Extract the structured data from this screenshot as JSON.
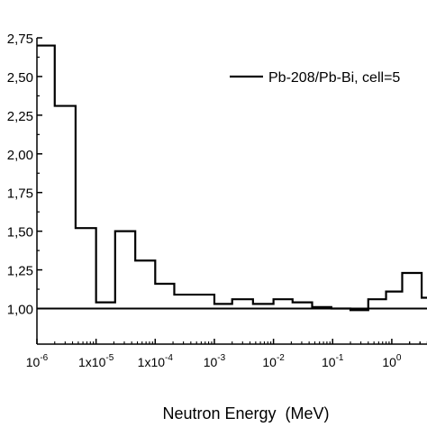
{
  "chart_data": {
    "type": "line",
    "step": true,
    "title": "",
    "xlabel": "Neutron Energy  (MeV)",
    "ylabel": "",
    "x_scale": "log",
    "xlim": [
      1e-06,
      6
    ],
    "ylim": [
      0.77,
      2.75
    ],
    "grid": false,
    "legend_position": "top-right",
    "reference_line": {
      "y": 1.0
    },
    "y_ticks": [
      {
        "value": 1.0,
        "label": "1,00"
      },
      {
        "value": 1.25,
        "label": "1,25"
      },
      {
        "value": 1.5,
        "label": "1,50"
      },
      {
        "value": 1.75,
        "label": "1,75"
      },
      {
        "value": 2.0,
        "label": "2,00"
      },
      {
        "value": 2.25,
        "label": "2,25"
      },
      {
        "value": 2.5,
        "label": "2,50"
      },
      {
        "value": 2.75,
        "label": "2,75"
      }
    ],
    "x_ticks": [
      {
        "value": 1e-06,
        "base": "10",
        "exp": "-6"
      },
      {
        "value": 1e-05,
        "base": "1x10",
        "exp": "-5"
      },
      {
        "value": 0.0001,
        "base": "1x10",
        "exp": "-4"
      },
      {
        "value": 0.001,
        "base": "10",
        "exp": "-3"
      },
      {
        "value": 0.01,
        "base": "10",
        "exp": "-2"
      },
      {
        "value": 0.1,
        "base": "10",
        "exp": "-1"
      },
      {
        "value": 1,
        "base": "10",
        "exp": "0"
      }
    ],
    "series": [
      {
        "name": "Pb-208/Pb-Bi, cell=5",
        "color": "#000000",
        "bins": [
          {
            "x0": 1e-06,
            "x1": 2e-06,
            "y": 2.7
          },
          {
            "x0": 2e-06,
            "x1": 4.5e-06,
            "y": 2.31
          },
          {
            "x0": 4.5e-06,
            "x1": 1e-05,
            "y": 1.52
          },
          {
            "x0": 1e-05,
            "x1": 2.1e-05,
            "y": 1.04
          },
          {
            "x0": 2.1e-05,
            "x1": 4.6e-05,
            "y": 1.5
          },
          {
            "x0": 4.6e-05,
            "x1": 0.0001,
            "y": 1.31
          },
          {
            "x0": 0.0001,
            "x1": 0.00021,
            "y": 1.16
          },
          {
            "x0": 0.00021,
            "x1": 0.001,
            "y": 1.09
          },
          {
            "x0": 0.001,
            "x1": 0.002,
            "y": 1.03
          },
          {
            "x0": 0.002,
            "x1": 0.0045,
            "y": 1.06
          },
          {
            "x0": 0.0045,
            "x1": 0.01,
            "y": 1.03
          },
          {
            "x0": 0.01,
            "x1": 0.021,
            "y": 1.06
          },
          {
            "x0": 0.021,
            "x1": 0.045,
            "y": 1.04
          },
          {
            "x0": 0.045,
            "x1": 0.095,
            "y": 1.01
          },
          {
            "x0": 0.095,
            "x1": 0.2,
            "y": 1.0
          },
          {
            "x0": 0.2,
            "x1": 0.4,
            "y": 0.99
          },
          {
            "x0": 0.4,
            "x1": 0.8,
            "y": 1.06
          },
          {
            "x0": 0.8,
            "x1": 1.5,
            "y": 1.11
          },
          {
            "x0": 1.5,
            "x1": 3.2,
            "y": 1.23
          },
          {
            "x0": 3.2,
            "x1": 6,
            "y": 1.07
          }
        ]
      }
    ]
  }
}
